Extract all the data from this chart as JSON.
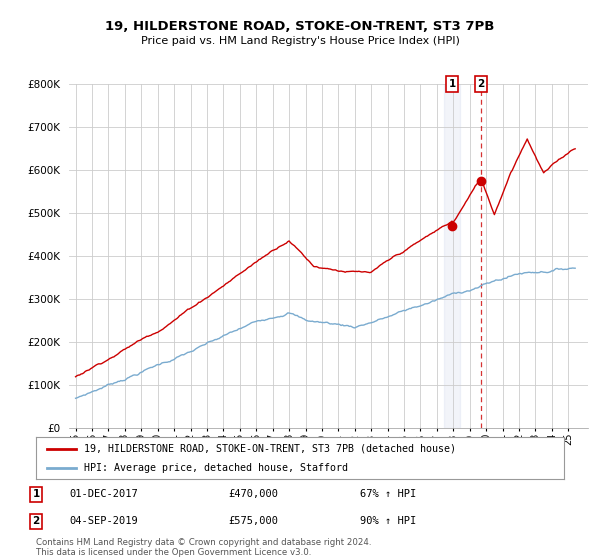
{
  "title": "19, HILDERSTONE ROAD, STOKE-ON-TRENT, ST3 7PB",
  "subtitle": "Price paid vs. HM Land Registry's House Price Index (HPI)",
  "legend_line1": "19, HILDERSTONE ROAD, STOKE-ON-TRENT, ST3 7PB (detached house)",
  "legend_line2": "HPI: Average price, detached house, Stafford",
  "annotation1_label": "1",
  "annotation1_date": "01-DEC-2017",
  "annotation1_price": "£470,000",
  "annotation1_hpi": "67% ↑ HPI",
  "annotation1_year": 2017.917,
  "annotation1_value": 470000,
  "annotation2_label": "2",
  "annotation2_date": "04-SEP-2019",
  "annotation2_price": "£575,000",
  "annotation2_hpi": "90% ↑ HPI",
  "annotation2_year": 2019.67,
  "annotation2_value": 575000,
  "red_line_color": "#cc0000",
  "blue_line_color": "#7aabcf",
  "background_color": "#ffffff",
  "grid_color": "#cccccc",
  "ylim": [
    0,
    800000
  ],
  "yticks": [
    0,
    100000,
    200000,
    300000,
    400000,
    500000,
    600000,
    700000,
    800000
  ],
  "footer_text": "Contains HM Land Registry data © Crown copyright and database right 2024.\nThis data is licensed under the Open Government Licence v3.0."
}
